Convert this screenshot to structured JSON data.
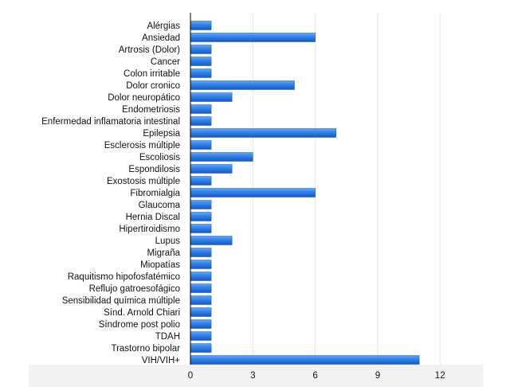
{
  "chart_data": {
    "type": "bar",
    "orientation": "horizontal",
    "categories": [
      "Alérgias",
      "Ansiedad",
      "Artrosis (Dolor)",
      "Cancer",
      "Colon irritable",
      "Dolor cronico",
      "Dolor neuropático",
      "Endometriosis",
      "Enfermedad inflamatoria intestinal",
      "Epilepsia",
      "Esclerosis múltiple",
      "Escoliosis",
      "Espondilosis",
      "Exostosis múltiple",
      "Fibromialgia",
      "Glaucoma",
      "Hernia Discal",
      "Hipertiroidismo",
      "Lupus",
      "Migraña",
      "Miopatías",
      "Raquitismo hipofosfatémico",
      "Reflujo gatroesofágico",
      "Sensibilidad química múltiple",
      "Sínd. Arnold Chiari",
      "Síndrome post polio",
      "TDAH",
      "Trastorno bipolar",
      "VIH/VIH+"
    ],
    "values": [
      1,
      6,
      1,
      1,
      1,
      5,
      2,
      1,
      1,
      7,
      1,
      3,
      2,
      1,
      6,
      1,
      1,
      1,
      2,
      1,
      1,
      1,
      1,
      1,
      1,
      1,
      1,
      1,
      11
    ],
    "xlim": [
      0,
      14
    ],
    "xticks": [
      0,
      3,
      6,
      9,
      12
    ],
    "xtick_labels": [
      "0",
      "3",
      "6",
      "9",
      "12"
    ],
    "grid": "vertical",
    "legend": "none",
    "colors": {
      "bar_top": "#5fa6f7",
      "bar_mid": "#2f80e8",
      "bar_bottom": "#1758c4",
      "gridline": "#e3e3e3",
      "axis_band": "#f2f2f2",
      "axis_line": "#000000",
      "text": "#111111"
    }
  }
}
